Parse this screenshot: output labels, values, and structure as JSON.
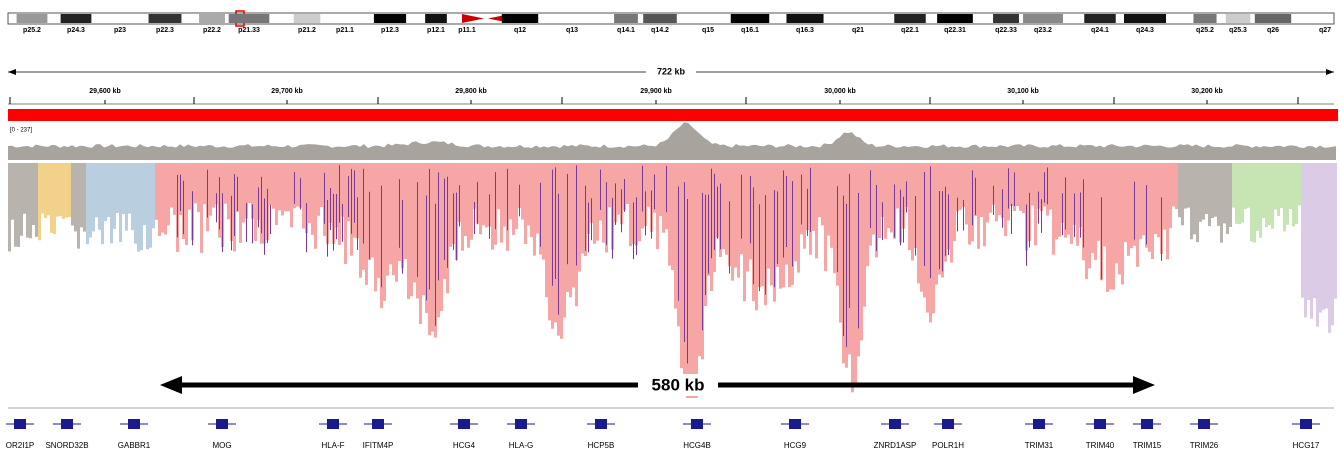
{
  "ideogram": {
    "bands": [
      "p25.2",
      "p24.3",
      "p23",
      "p22.3",
      "p22.2",
      "p21.33",
      "p21.2",
      "p21.1",
      "p12.3",
      "p12.1",
      "p11.1",
      "q12",
      "q13",
      "q14.1",
      "q14.2",
      "q15",
      "q16.1",
      "q16.3",
      "q21",
      "q22.1",
      "q22.31",
      "q22.33",
      "q23.2",
      "q24.1",
      "q24.3",
      "q25.2",
      "q25.3",
      "q26",
      "q27"
    ]
  },
  "ruler": {
    "span": "722 kb",
    "ticks": [
      "29,600 kb",
      "29,700 kb",
      "29,800 kb",
      "29,900 kb",
      "30,000 kb",
      "30,100 kb",
      "30,200 kb"
    ]
  },
  "coverage": {
    "range": "[0 - 237]"
  },
  "annotation": {
    "label": "580 kb"
  },
  "genes": [
    "OR2I1P",
    "SNORD32B",
    "GABBR1",
    "MOG",
    "HLA-F",
    "IFITM4P",
    "HCG4",
    "HLA-G",
    "HCP5B",
    "HCG4B",
    "HCG9",
    "ZNRD1ASP",
    "POLR1H",
    "TRIM31",
    "TRIM40",
    "TRIM15",
    "TRIM26",
    "HCG17"
  ]
}
